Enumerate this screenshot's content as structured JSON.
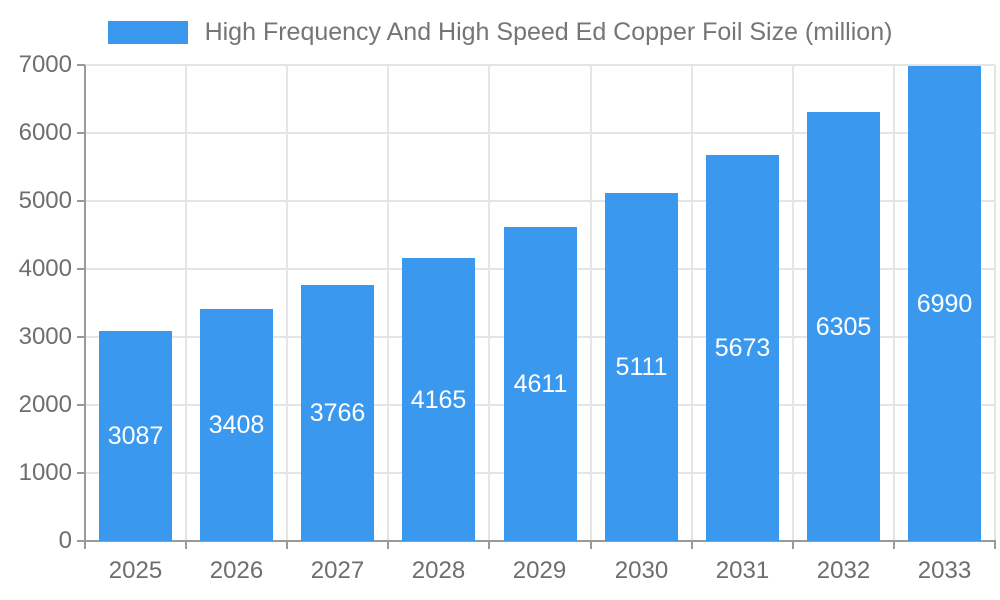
{
  "legend": {
    "label": "High Frequency And High Speed Ed Copper Foil Size (million)"
  },
  "colors": {
    "bar": "#3a99ee",
    "grid": "#e5e5e5",
    "axis": "#9a9a9a",
    "tick_text": "#6e6e6e",
    "legend_text": "#757575",
    "bar_label_text": "#ffffff",
    "background": "#ffffff"
  },
  "chart_data": {
    "type": "bar",
    "title": "High Frequency And High Speed Ed Copper Foil Size (million)",
    "categories": [
      "2025",
      "2026",
      "2027",
      "2028",
      "2029",
      "2030",
      "2031",
      "2032",
      "2033"
    ],
    "values": [
      3087,
      3408,
      3766,
      4165,
      4611,
      5111,
      5673,
      6305,
      6990
    ],
    "series": [
      {
        "name": "High Frequency And High Speed Ed Copper Foil Size (million)",
        "values": [
          3087,
          3408,
          3766,
          4165,
          4611,
          5111,
          5673,
          6305,
          6990
        ]
      }
    ],
    "xlabel": "",
    "ylabel": "",
    "ylim": [
      0,
      7000
    ],
    "y_ticks": [
      0,
      1000,
      2000,
      3000,
      4000,
      5000,
      6000,
      7000
    ],
    "grid": true,
    "legend_position": "top",
    "data_labels": "inside-center-white"
  }
}
